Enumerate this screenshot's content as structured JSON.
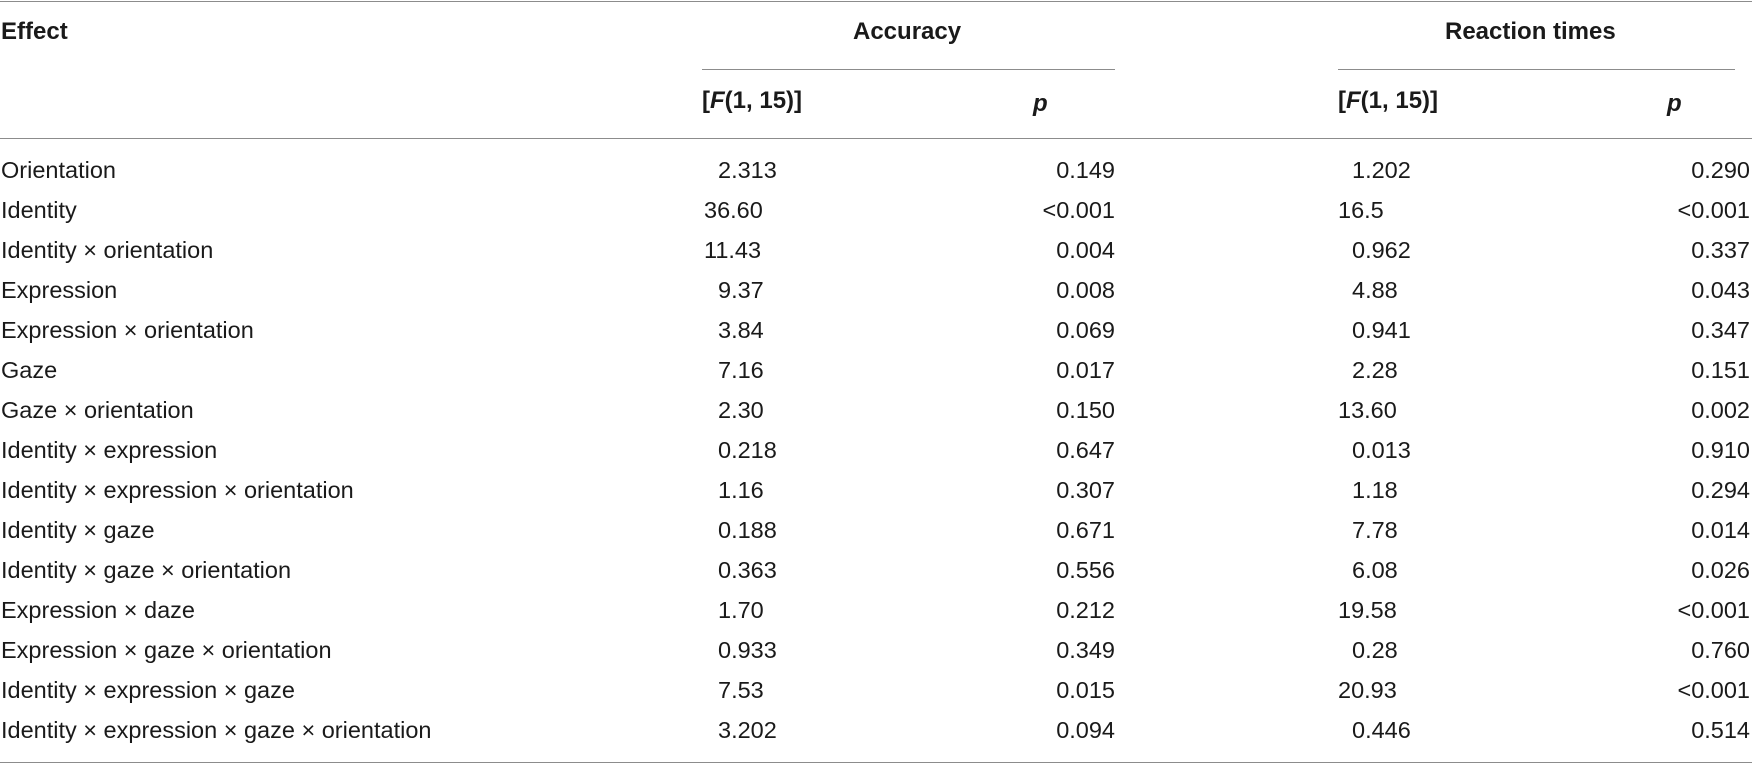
{
  "header": {
    "effect": "Effect",
    "accuracy": "Accuracy",
    "reaction_times": "Reaction times",
    "f_open": "[",
    "f_letter": "F",
    "f_args": "(1, 15)]",
    "p": "p"
  },
  "rows": [
    {
      "effect": "Orientation",
      "acc_f": "2.313",
      "acc_p": "0.149",
      "rt_f": "1.202",
      "rt_p": "0.290"
    },
    {
      "effect": "Identity",
      "acc_f": "36.60",
      "acc_p": "<0.001",
      "rt_f": "16.5",
      "rt_p": "<0.001"
    },
    {
      "effect": "Identity × orientation",
      "acc_f": "11.43",
      "acc_p": "0.004",
      "rt_f": "0.962",
      "rt_p": "0.337"
    },
    {
      "effect": "Expression",
      "acc_f": "9.37",
      "acc_p": "0.008",
      "rt_f": "4.88",
      "rt_p": "0.043"
    },
    {
      "effect": "Expression × orientation",
      "acc_f": "3.84",
      "acc_p": "0.069",
      "rt_f": "0.941",
      "rt_p": "0.347"
    },
    {
      "effect": "Gaze",
      "acc_f": "7.16",
      "acc_p": "0.017",
      "rt_f": "2.28",
      "rt_p": "0.151"
    },
    {
      "effect": "Gaze × orientation",
      "acc_f": "2.30",
      "acc_p": "0.150",
      "rt_f": "13.60",
      "rt_p": "0.002"
    },
    {
      "effect": "Identity × expression",
      "acc_f": "0.218",
      "acc_p": "0.647",
      "rt_f": "0.013",
      "rt_p": "0.910"
    },
    {
      "effect": "Identity × expression × orientation",
      "acc_f": "1.16",
      "acc_p": "0.307",
      "rt_f": "1.18",
      "rt_p": "0.294"
    },
    {
      "effect": "Identity × gaze",
      "acc_f": "0.188",
      "acc_p": "0.671",
      "rt_f": "7.78",
      "rt_p": "0.014"
    },
    {
      "effect": "Identity × gaze × orientation",
      "acc_f": "0.363",
      "acc_p": "0.556",
      "rt_f": "6.08",
      "rt_p": "0.026"
    },
    {
      "effect": "Expression × daze",
      "acc_f": "1.70",
      "acc_p": "0.212",
      "rt_f": "19.58",
      "rt_p": "<0.001"
    },
    {
      "effect": "Expression × gaze × orientation",
      "acc_f": "0.933",
      "acc_p": "0.349",
      "rt_f": "0.28",
      "rt_p": "0.760"
    },
    {
      "effect": "Identity × expression × gaze",
      "acc_f": "7.53",
      "acc_p": "0.015",
      "rt_f": "20.93",
      "rt_p": "<0.001"
    },
    {
      "effect": "Identity ×  expression × gaze × orientation",
      "acc_f": "3.202",
      "acc_p": "0.094",
      "rt_f": "0.446",
      "rt_p": "0.514"
    }
  ]
}
